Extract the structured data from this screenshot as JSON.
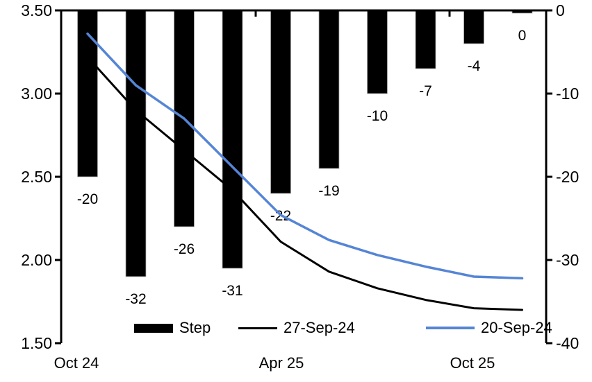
{
  "chart_data": {
    "type": "bar+line",
    "title": "",
    "x_axis": {
      "labels": [
        "Oct 24",
        "Apr 25",
        "Oct 25"
      ],
      "gridlines": false
    },
    "left_axis": {
      "ticks": [
        "3.50",
        "3.00",
        "2.50",
        "2.00",
        "1.50"
      ],
      "range": [
        1.5,
        3.5
      ]
    },
    "right_axis": {
      "ticks": [
        "0",
        "-10",
        "-20",
        "-30",
        "-40"
      ],
      "range": [
        -40,
        0
      ]
    },
    "bars": {
      "name": "Step",
      "axis": "right",
      "color": "#000000",
      "values": [
        -20,
        -32,
        -26,
        -31,
        -22,
        -19,
        -10,
        -7,
        -4,
        0
      ],
      "labels": [
        "-20",
        "-32",
        "-26",
        "-31",
        "-22",
        "-19",
        "-10",
        "-7",
        "-4",
        "0"
      ]
    },
    "series": [
      {
        "name": "27-Sep-24",
        "axis": "left",
        "color": "#000000",
        "values": [
          3.22,
          2.9,
          2.66,
          2.42,
          2.11,
          1.93,
          1.83,
          1.76,
          1.71,
          1.7
        ]
      },
      {
        "name": "20-Sep-24",
        "axis": "left",
        "color": "#5585d5",
        "values": [
          3.36,
          3.05,
          2.85,
          2.56,
          2.27,
          2.12,
          2.03,
          1.96,
          1.9,
          1.89
        ]
      }
    ],
    "legend_position": "bottom-inside"
  }
}
